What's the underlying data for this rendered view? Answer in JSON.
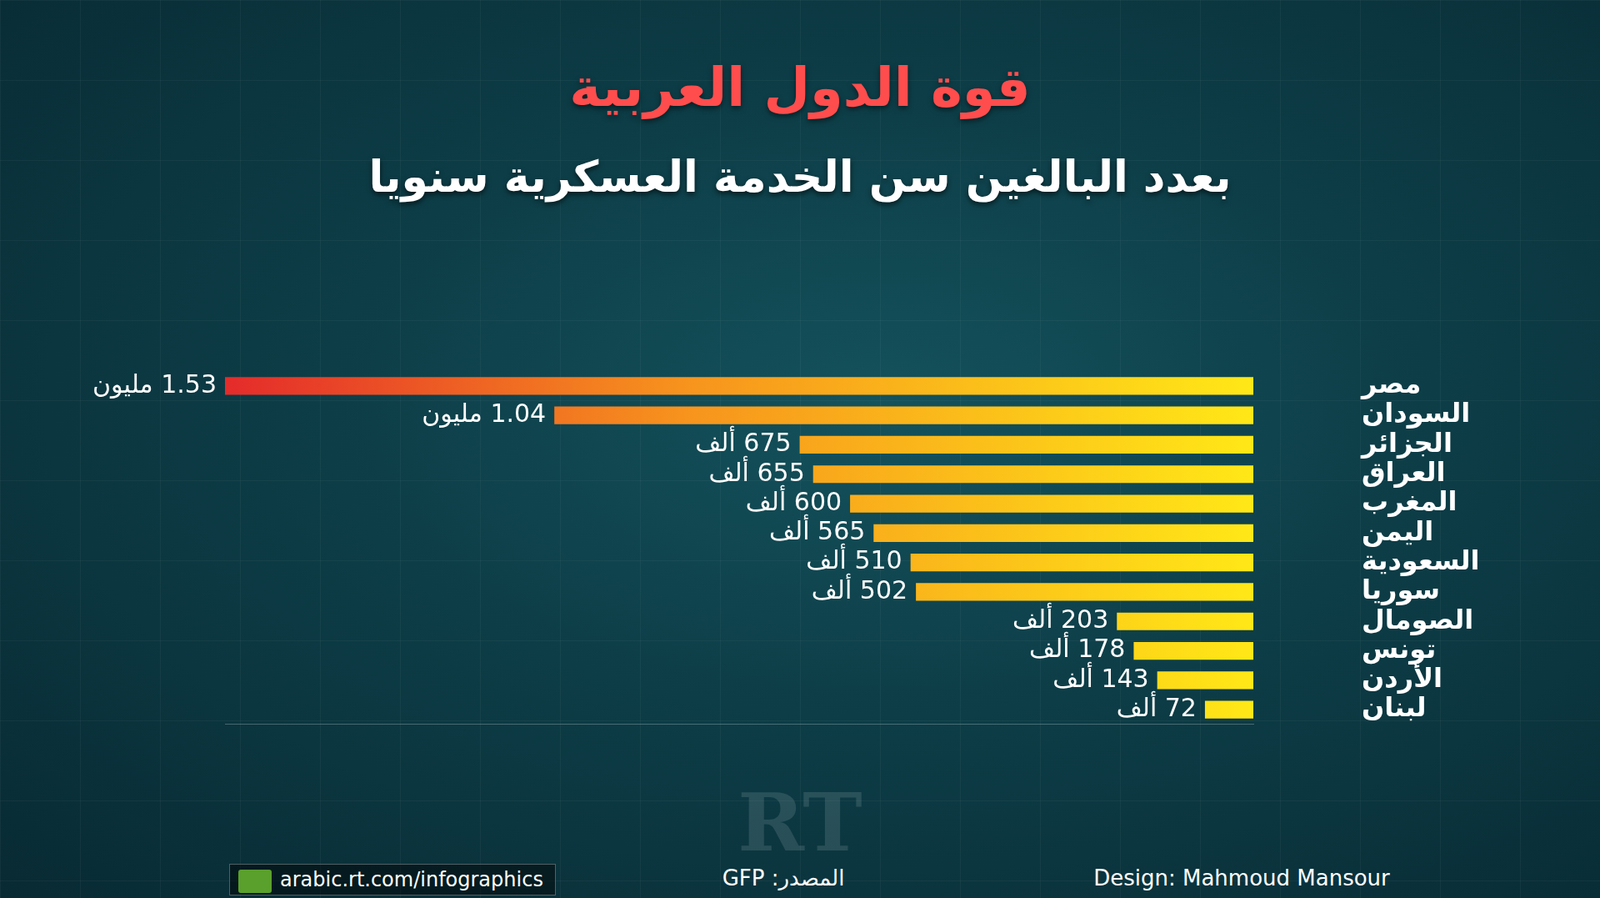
{
  "chart_data": {
    "type": "bar",
    "orientation": "horizontal",
    "title": "قوة الدول العربية",
    "subtitle": "بعدد البالغين سن الخدمة العسكرية سنويا",
    "categories": [
      "مصر",
      "السودان",
      "الجزائر",
      "العراق",
      "المغرب",
      "اليمن",
      "السعودية",
      "سوريا",
      "الصومال",
      "تونس",
      "الأردن",
      "لبنان"
    ],
    "values": [
      1530000,
      1040000,
      675000,
      655000,
      600000,
      565000,
      510000,
      502000,
      203000,
      178000,
      143000,
      72000
    ],
    "value_labels": [
      "1.53 مليون",
      "1.04 مليون",
      "675 ألف",
      "655 ألف",
      "600 ألف",
      "565 ألف",
      "510 ألف",
      "502 ألف",
      "203 ألف",
      "178 ألف",
      "143 ألف",
      "72 ألف"
    ],
    "data_labels": true,
    "xlim": [
      0,
      1530000
    ],
    "tick_labels": "y",
    "grid": false,
    "source": "المصدر: GFP",
    "credit": "Design: Mahmoud Mansour",
    "website": "arabic.rt.com/infographics",
    "watermark": "RT"
  }
}
